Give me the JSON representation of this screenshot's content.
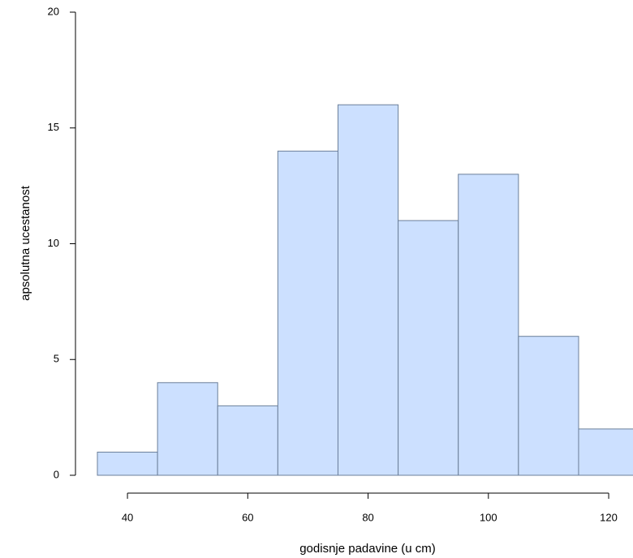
{
  "chart_data": {
    "type": "histogram",
    "x_label": "godisnje padavine (u cm)",
    "y_label": "apsolutna ucestanost",
    "bins": [
      35,
      45,
      55,
      65,
      75,
      85,
      95,
      105,
      115,
      125
    ],
    "values": [
      1,
      4,
      3,
      14,
      16,
      11,
      13,
      6,
      2
    ],
    "color": "#cce0ff",
    "edge_color": "#6b7f99",
    "xlim": [
      35,
      125
    ],
    "xticks": [
      40,
      60,
      80,
      100,
      120
    ],
    "ylim": [
      0,
      20
    ],
    "yticks": [
      0,
      5,
      10,
      15,
      20
    ]
  }
}
